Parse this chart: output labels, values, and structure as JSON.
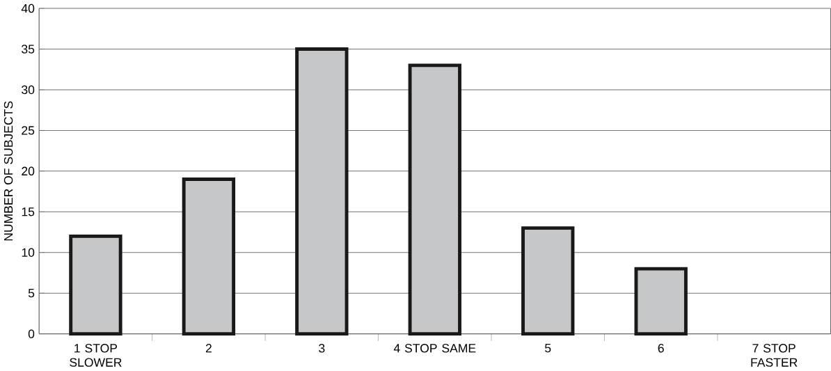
{
  "chart_data": {
    "type": "bar",
    "ylabel": "NUMBER OF SUBJECTS",
    "categories": [
      "1 STOP SLOWER",
      "2",
      "3",
      "4 STOP SAME",
      "5",
      "6",
      "7 STOP FASTER"
    ],
    "values": [
      12,
      19,
      35,
      33,
      13,
      8,
      0
    ],
    "color": "#c6c7c9",
    "ylim": [
      0,
      40
    ],
    "yticks": [
      0,
      5,
      10,
      15,
      20,
      25,
      30,
      35,
      40
    ],
    "grid": "y"
  }
}
